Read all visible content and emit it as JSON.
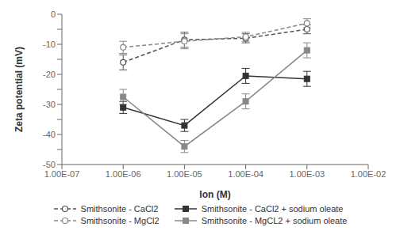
{
  "chart_data": {
    "type": "line",
    "x_label": "Ion (M)",
    "y_label": "Zeta potential (mV)",
    "x": [
      1e-06,
      1e-05,
      0.0001,
      0.001
    ],
    "series": [
      {
        "name": "Smithsonite - CaCl2",
        "color": "#555555",
        "marker": "open_circle",
        "line_style": "dashed",
        "values": [
          -16,
          -8.5,
          -8,
          -5
        ],
        "errors": [
          2.5,
          2.5,
          1.5,
          1.5
        ]
      },
      {
        "name": "Smithsonite - CaCl2 + sodium oleate",
        "color": "#333333",
        "marker": "square",
        "line_style": "solid",
        "values": [
          -31,
          -37,
          -20.5,
          -21.5
        ],
        "errors": [
          2.0,
          2.0,
          2.5,
          2.5
        ]
      },
      {
        "name": "Smithsonite - MgCl2",
        "color": "#888888",
        "marker": "open_circle",
        "line_style": "dashed",
        "values": [
          -11,
          -9,
          -7.5,
          -3
        ],
        "errors": [
          2.0,
          2.5,
          1.5,
          1.5
        ]
      },
      {
        "name": "Smithsonite - MgCL2 + sodium oleate",
        "color": "#888888",
        "marker": "square",
        "line_style": "solid",
        "values": [
          -27.5,
          -44,
          -29,
          -12
        ],
        "errors": [
          2.5,
          2.0,
          2.5,
          2.5
        ]
      }
    ],
    "xlim": [
      1e-07,
      0.01
    ],
    "ylim": [
      -50,
      0
    ],
    "xticks": [
      {
        "value": 1e-07,
        "label": "1.00E-07"
      },
      {
        "value": 1e-06,
        "label": "1.00E-06"
      },
      {
        "value": 1e-05,
        "label": "1.00E-05"
      },
      {
        "value": 0.0001,
        "label": "1.00E-04"
      },
      {
        "value": 0.001,
        "label": "1.00E-03"
      },
      {
        "value": 0.01,
        "label": "1.00E-02"
      }
    ],
    "yticks": [
      0,
      {
        "value": -5,
        "label": ""
      },
      -10,
      {
        "value": -15,
        "label": ""
      },
      -20,
      {
        "value": -25,
        "label": ""
      },
      -30,
      {
        "value": -35,
        "label": ""
      },
      -40,
      {
        "value": -45,
        "label": ""
      },
      -50
    ],
    "log": "x",
    "grid": false,
    "legend": "bottom"
  }
}
